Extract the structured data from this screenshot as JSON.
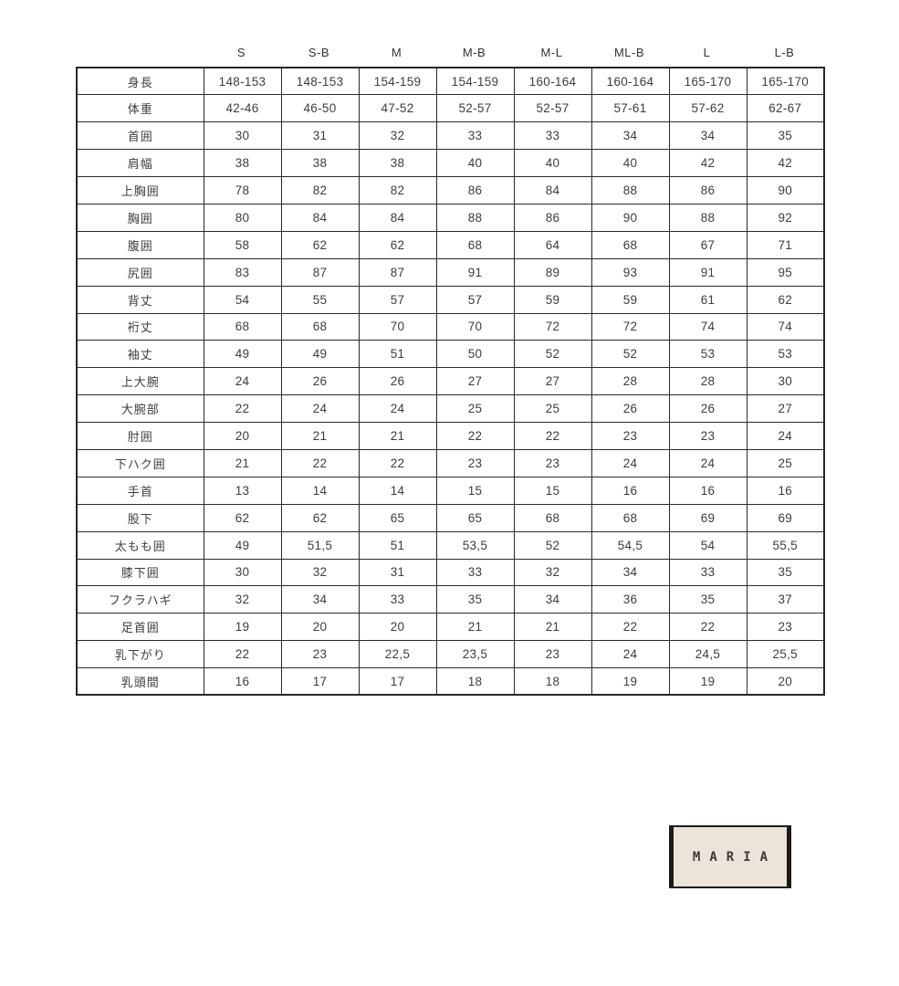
{
  "chart_data": {
    "type": "table",
    "columns": [
      "S",
      "S-B",
      "M",
      "M-B",
      "M-L",
      "ML-B",
      "L",
      "L-B"
    ],
    "rows": [
      {
        "label": "身長",
        "values": [
          "148-153",
          "148-153",
          "154-159",
          "154-159",
          "160-164",
          "160-164",
          "165-170",
          "165-170"
        ]
      },
      {
        "label": "体重",
        "values": [
          "42-46",
          "46-50",
          "47-52",
          "52-57",
          "52-57",
          "57-61",
          "57-62",
          "62-67"
        ]
      },
      {
        "label": "首囲",
        "values": [
          "30",
          "31",
          "32",
          "33",
          "33",
          "34",
          "34",
          "35"
        ]
      },
      {
        "label": "肩幅",
        "values": [
          "38",
          "38",
          "38",
          "40",
          "40",
          "40",
          "42",
          "42"
        ]
      },
      {
        "label": "上胸囲",
        "values": [
          "78",
          "82",
          "82",
          "86",
          "84",
          "88",
          "86",
          "90"
        ]
      },
      {
        "label": "胸囲",
        "values": [
          "80",
          "84",
          "84",
          "88",
          "86",
          "90",
          "88",
          "92"
        ]
      },
      {
        "label": "腹囲",
        "values": [
          "58",
          "62",
          "62",
          "68",
          "64",
          "68",
          "67",
          "71"
        ]
      },
      {
        "label": "尻囲",
        "values": [
          "83",
          "87",
          "87",
          "91",
          "89",
          "93",
          "91",
          "95"
        ]
      },
      {
        "label": "背丈",
        "values": [
          "54",
          "55",
          "57",
          "57",
          "59",
          "59",
          "61",
          "62"
        ]
      },
      {
        "label": "裄丈",
        "values": [
          "68",
          "68",
          "70",
          "70",
          "72",
          "72",
          "74",
          "74"
        ]
      },
      {
        "label": "袖丈",
        "values": [
          "49",
          "49",
          "51",
          "50",
          "52",
          "52",
          "53",
          "53"
        ]
      },
      {
        "label": "上大腕",
        "values": [
          "24",
          "26",
          "26",
          "27",
          "27",
          "28",
          "28",
          "30"
        ]
      },
      {
        "label": "大腕部",
        "values": [
          "22",
          "24",
          "24",
          "25",
          "25",
          "26",
          "26",
          "27"
        ]
      },
      {
        "label": "肘囲",
        "values": [
          "20",
          "21",
          "21",
          "22",
          "22",
          "23",
          "23",
          "24"
        ]
      },
      {
        "label": "下ハク囲",
        "values": [
          "21",
          "22",
          "22",
          "23",
          "23",
          "24",
          "24",
          "25"
        ]
      },
      {
        "label": "手首",
        "values": [
          "13",
          "14",
          "14",
          "15",
          "15",
          "16",
          "16",
          "16"
        ]
      },
      {
        "label": "股下",
        "values": [
          "62",
          "62",
          "65",
          "65",
          "68",
          "68",
          "69",
          "69"
        ]
      },
      {
        "label": "太もも囲",
        "values": [
          "49",
          "51,5",
          "51",
          "53,5",
          "52",
          "54,5",
          "54",
          "55,5"
        ]
      },
      {
        "label": "膝下囲",
        "values": [
          "30",
          "32",
          "31",
          "33",
          "32",
          "34",
          "33",
          "35"
        ]
      },
      {
        "label": "フクラハギ",
        "values": [
          "32",
          "34",
          "33",
          "35",
          "34",
          "36",
          "35",
          "37"
        ]
      },
      {
        "label": "足首囲",
        "values": [
          "19",
          "20",
          "20",
          "21",
          "21",
          "22",
          "22",
          "23"
        ]
      },
      {
        "label": "乳下がり",
        "values": [
          "22",
          "23",
          "22,5",
          "23,5",
          "23",
          "24",
          "24,5",
          "25,5"
        ]
      },
      {
        "label": "乳頭間",
        "values": [
          "16",
          "17",
          "17",
          "18",
          "18",
          "19",
          "19",
          "20"
        ]
      }
    ]
  },
  "logo": {
    "text": "MARIA"
  },
  "colors": {
    "page_bg": "#ffffff",
    "table_border": "#262626",
    "cell_text": "#3d3d3d",
    "logo_bg": "#ece3d9",
    "logo_border": "#1b1b1b",
    "logo_text": "#3a3a3a"
  }
}
